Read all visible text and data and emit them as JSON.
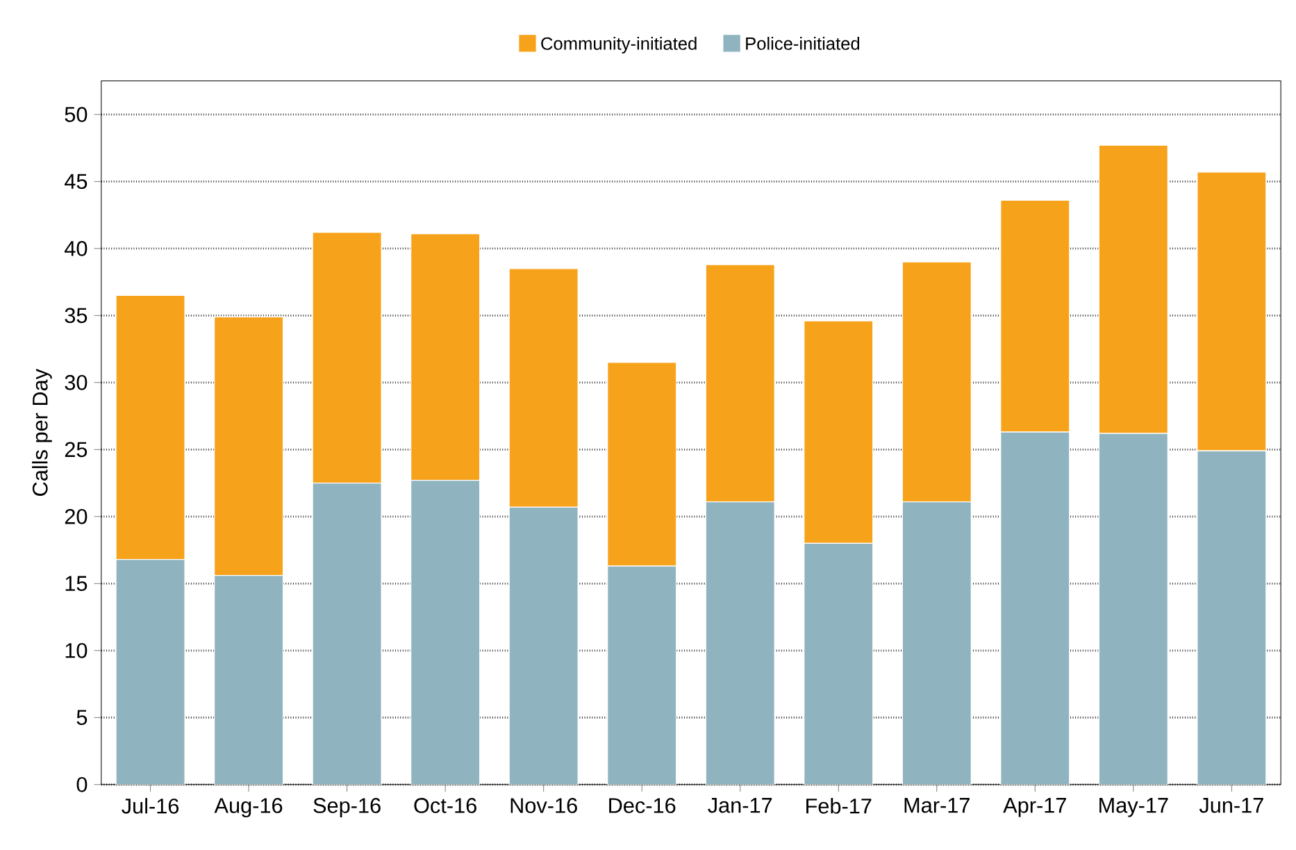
{
  "chart_data": {
    "type": "bar",
    "stacked": true,
    "ylabel": "Calls per Day",
    "categories": [
      "Jul-16",
      "Aug-16",
      "Sep-16",
      "Oct-16",
      "Nov-16",
      "Dec-16",
      "Jan-17",
      "Feb-17",
      "Mar-17",
      "Apr-17",
      "May-17",
      "Jun-17"
    ],
    "series": [
      {
        "name": "Police-initiated",
        "color": "#8fb3bf",
        "values": [
          16.8,
          15.6,
          22.5,
          22.7,
          20.7,
          16.3,
          21.1,
          18.0,
          21.1,
          26.3,
          26.2,
          24.9
        ]
      },
      {
        "name": "Community-initiated",
        "color": "#f7a21b",
        "values": [
          19.7,
          19.3,
          18.7,
          18.4,
          17.8,
          15.2,
          17.7,
          16.6,
          17.9,
          17.3,
          21.5,
          20.8
        ]
      }
    ],
    "ylim": [
      0,
      52.5
    ],
    "yticks": [
      0,
      5,
      10,
      15,
      20,
      25,
      30,
      35,
      40,
      45,
      50
    ],
    "grid": "y",
    "legend": "top"
  }
}
